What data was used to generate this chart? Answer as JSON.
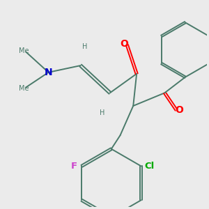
{
  "bg_color": "#ebebeb",
  "bond_color": "#4a7a6a",
  "O_color": "#ff0000",
  "N_color": "#0000cc",
  "F_color": "#cc44cc",
  "Cl_color": "#00aa00",
  "lw": 1.4,
  "figsize": [
    3.0,
    3.0
  ],
  "dpi": 100,
  "fs": 8.5,
  "xlim": [
    0,
    10
  ],
  "ylim": [
    0,
    10
  ]
}
